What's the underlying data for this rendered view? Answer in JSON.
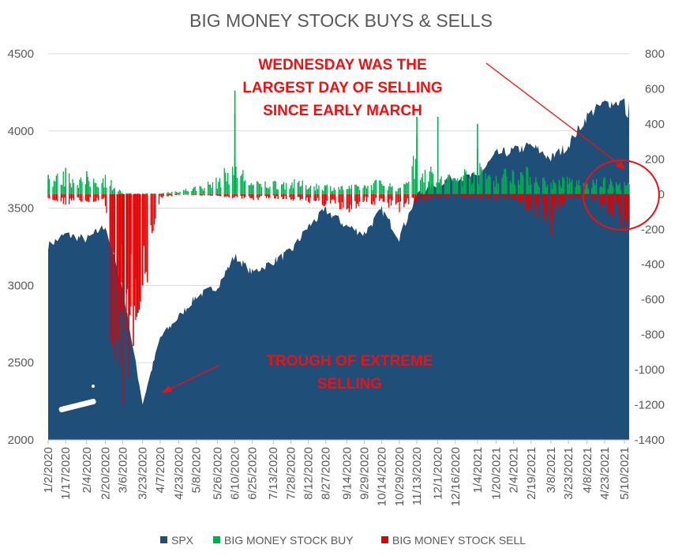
{
  "chart_data": {
    "type": "area",
    "title": "BIG MONEY STOCK BUYS & SELLS",
    "x_tick_labels": [
      "1/2/2020",
      "1/17/2020",
      "2/4/2020",
      "2/20/2020",
      "3/6/2020",
      "3/23/2020",
      "4/7/2020",
      "4/23/2020",
      "5/8/2020",
      "5/26/2020",
      "6/10/2020",
      "6/25/2020",
      "7/13/2020",
      "7/28/2020",
      "8/12/2020",
      "8/27/2020",
      "9/14/2020",
      "9/29/2020",
      "10/14/2020",
      "10/29/2020",
      "11/13/2020",
      "12/1/2020",
      "12/16/2020",
      "1/4/2021",
      "1/20/2021",
      "2/4/2021",
      "2/19/2021",
      "3/8/2021",
      "3/23/2021",
      "4/8/2021",
      "4/23/2021",
      "5/10/2021"
    ],
    "y_left": {
      "min": 2000,
      "max": 4500,
      "ticks": [
        "4500",
        "4000",
        "3500",
        "3000",
        "2500",
        "2000"
      ]
    },
    "y_right": {
      "min": -1400,
      "max": 800,
      "ticks": [
        "800",
        "600",
        "400",
        "200",
        "0",
        "-200",
        "-400",
        "-600",
        "-800",
        "-1000",
        "-1200",
        "-1400"
      ]
    },
    "spx_keypoints": [
      [
        "1/2/2020",
        3258
      ],
      [
        "1/17/2020",
        3330
      ],
      [
        "2/4/2020",
        3298
      ],
      [
        "2/20/2020",
        3386
      ],
      [
        "3/6/2020",
        2972
      ],
      [
        "3/23/2020",
        2237
      ],
      [
        "4/7/2020",
        2659
      ],
      [
        "4/23/2020",
        2797
      ],
      [
        "5/8/2020",
        2930
      ],
      [
        "5/26/2020",
        2992
      ],
      [
        "6/10/2020",
        3190
      ],
      [
        "6/25/2020",
        3083
      ],
      [
        "7/13/2020",
        3155
      ],
      [
        "7/28/2020",
        3218
      ],
      [
        "8/12/2020",
        3380
      ],
      [
        "8/27/2020",
        3485
      ],
      [
        "9/14/2020",
        3383
      ],
      [
        "9/29/2020",
        3335
      ],
      [
        "10/14/2020",
        3488
      ],
      [
        "10/29/2020",
        3310
      ],
      [
        "11/13/2020",
        3585
      ],
      [
        "12/1/2020",
        3662
      ],
      [
        "12/16/2020",
        3701
      ],
      [
        "1/4/2021",
        3700
      ],
      [
        "1/20/2021",
        3851
      ],
      [
        "2/4/2021",
        3871
      ],
      [
        "2/19/2021",
        3906
      ],
      [
        "3/8/2021",
        3821
      ],
      [
        "3/23/2021",
        3910
      ],
      [
        "4/8/2021",
        4097
      ],
      [
        "4/23/2021",
        4180
      ],
      [
        "5/10/2021",
        4188
      ],
      [
        "5/12/2021",
        4063
      ],
      [
        "5/14/2021",
        4173
      ]
    ],
    "series": [
      {
        "name": "SPX",
        "color": "#1f4e79"
      },
      {
        "name": "BIG MONEY STOCK BUY",
        "color": "#00b050"
      },
      {
        "name": "BIG MONEY STOCK SELL",
        "color": "#e00000"
      }
    ],
    "buy_keypoints": [
      [
        "1/2/2020",
        90
      ],
      [
        "1/17/2020",
        110
      ],
      [
        "2/4/2020",
        80
      ],
      [
        "2/20/2020",
        100
      ],
      [
        "3/6/2020",
        5
      ],
      [
        "3/23/2020",
        5
      ],
      [
        "4/7/2020",
        5
      ],
      [
        "4/23/2020",
        20
      ],
      [
        "5/8/2020",
        40
      ],
      [
        "5/26/2020",
        80
      ],
      [
        "6/10/2020",
        180
      ],
      [
        "6/25/2020",
        60
      ],
      [
        "7/13/2020",
        70
      ],
      [
        "7/28/2020",
        70
      ],
      [
        "8/12/2020",
        60
      ],
      [
        "8/27/2020",
        50
      ],
      [
        "9/14/2020",
        40
      ],
      [
        "9/29/2020",
        50
      ],
      [
        "10/14/2020",
        80
      ],
      [
        "10/29/2020",
        30
      ],
      [
        "11/13/2020",
        220
      ],
      [
        "12/1/2020",
        90
      ],
      [
        "12/16/2020",
        110
      ],
      [
        "1/4/2021",
        150
      ],
      [
        "1/20/2021",
        110
      ],
      [
        "2/4/2021",
        150
      ],
      [
        "2/19/2021",
        120
      ],
      [
        "3/8/2021",
        70
      ],
      [
        "3/23/2021",
        90
      ],
      [
        "4/8/2021",
        60
      ],
      [
        "4/23/2021",
        80
      ],
      [
        "5/10/2021",
        60
      ]
    ],
    "sell_keypoints": [
      [
        "1/2/2020",
        -20
      ],
      [
        "1/17/2020",
        -50
      ],
      [
        "2/4/2020",
        -40
      ],
      [
        "2/20/2020",
        -60
      ],
      [
        "3/6/2020",
        -700
      ],
      [
        "3/23/2020",
        -600
      ],
      [
        "4/7/2020",
        -20
      ],
      [
        "4/23/2020",
        -5
      ],
      [
        "5/8/2020",
        -5
      ],
      [
        "5/26/2020",
        -10
      ],
      [
        "6/10/2020",
        -20
      ],
      [
        "6/25/2020",
        -30
      ],
      [
        "7/13/2020",
        -20
      ],
      [
        "7/28/2020",
        -30
      ],
      [
        "8/12/2020",
        -40
      ],
      [
        "8/27/2020",
        -60
      ],
      [
        "9/14/2020",
        -100
      ],
      [
        "9/29/2020",
        -40
      ],
      [
        "10/14/2020",
        -60
      ],
      [
        "10/29/2020",
        -90
      ],
      [
        "11/13/2020",
        -40
      ],
      [
        "12/1/2020",
        -20
      ],
      [
        "12/16/2020",
        -15
      ],
      [
        "1/4/2021",
        -20
      ],
      [
        "1/20/2021",
        -30
      ],
      [
        "2/4/2021",
        -20
      ],
      [
        "2/19/2021",
        -100
      ],
      [
        "3/8/2021",
        -150
      ],
      [
        "3/23/2021",
        -20
      ],
      [
        "4/8/2021",
        -30
      ],
      [
        "4/23/2021",
        -90
      ],
      [
        "5/10/2021",
        -160
      ]
    ],
    "spike_values": [
      [
        "1/2/2020",
        0,
        110
      ],
      [
        "1/17/2020",
        0,
        150
      ],
      [
        "2/4/2020",
        0,
        130
      ],
      [
        "3/6/2020",
        0,
        -1200
      ],
      [
        "3/6/2020",
        0,
        -950
      ],
      [
        "3/6/2020",
        0,
        -740
      ],
      [
        "3/23/2020",
        0,
        -520
      ],
      [
        "6/10/2020",
        0,
        590
      ],
      [
        "6/10/2020",
        0,
        460
      ],
      [
        "6/10/2020",
        0,
        220
      ],
      [
        "11/13/2020",
        0,
        440
      ],
      [
        "11/13/2020",
        0,
        330
      ],
      [
        "12/1/2020",
        0,
        440
      ],
      [
        "1/4/2021",
        0,
        400
      ],
      [
        "1/4/2021",
        0,
        260
      ],
      [
        "3/8/2021",
        0,
        -230
      ],
      [
        "5/10/2021",
        0,
        -210
      ]
    ],
    "annotations": [
      {
        "text_lines": [
          "WEDNESDAY WAS THE",
          "LARGEST DAY OF SELLING",
          "SINCE EARLY MARCH"
        ],
        "color": "#ee1111"
      },
      {
        "text_lines": [
          "TROUGH OF EXTREME",
          "SELLING"
        ],
        "color": "#ee1111"
      }
    ],
    "legend": {
      "placement": "bottom",
      "items": [
        "SPX",
        "BIG MONEY STOCK BUY",
        "BIG MONEY STOCK SELL"
      ]
    },
    "grid": true
  }
}
